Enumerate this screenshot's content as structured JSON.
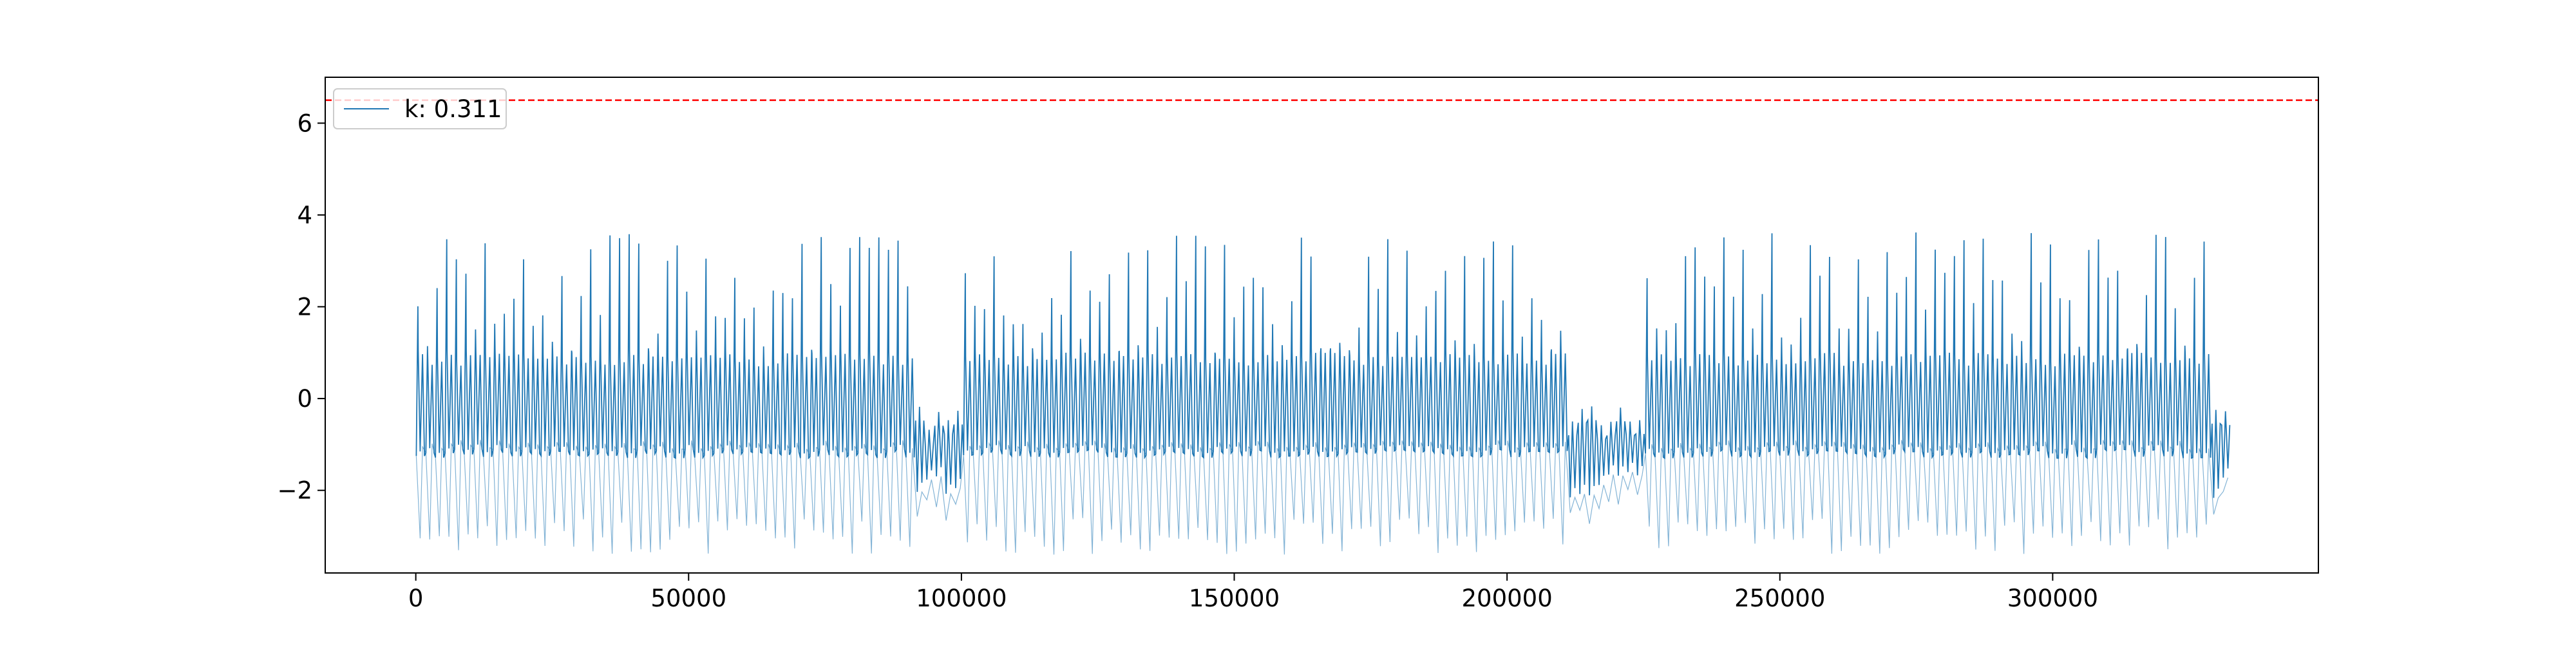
{
  "chart_data": {
    "type": "line",
    "title": "",
    "xlabel": "",
    "ylabel": "",
    "xlim": [
      -16600,
      348700
    ],
    "ylim": [
      -3.8,
      7.0
    ],
    "x_ticks": [
      0,
      50000,
      100000,
      150000,
      200000,
      250000,
      300000
    ],
    "x_tick_labels": [
      "0",
      "50000",
      "100000",
      "150000",
      "200000",
      "250000",
      "300000"
    ],
    "y_ticks": [
      -2,
      0,
      2,
      4,
      6
    ],
    "y_tick_labels": [
      "−2",
      "0",
      "2",
      "4",
      "6"
    ],
    "grid": false,
    "legend": {
      "placement": "top-left"
    },
    "series": [
      {
        "name": "k: 0.311",
        "color": "#1f77b4",
        "x_range": [
          0,
          332000
        ],
        "upper_envelope_peak_range": [
          3.0,
          3.7
        ],
        "baseline_band": [
          -1.3,
          1.1
        ],
        "lower_envelope_trough_range": [
          -3.4,
          -2.6
        ],
        "lull_intervals": [
          [
            90000,
            100000
          ],
          [
            210000,
            225000
          ],
          [
            328000,
            332000
          ]
        ]
      }
    ],
    "reference_lines": [
      {
        "orientation": "horizontal",
        "y": 6.5,
        "color": "#ff0000",
        "style": "dashed"
      }
    ]
  }
}
